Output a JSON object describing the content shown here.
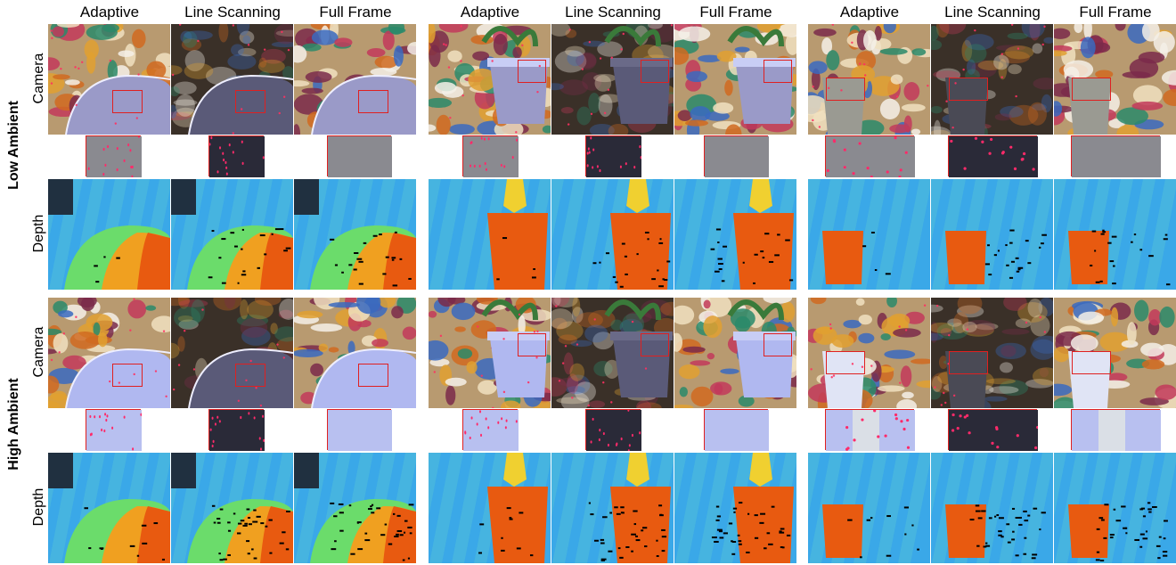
{
  "columns": [
    "Adaptive",
    "Line Scanning",
    "Full Frame"
  ],
  "row_labels": {
    "camera": "Camera",
    "depth": "Depth"
  },
  "groups": [
    "Low Ambient",
    "High Ambient"
  ],
  "scenes": [
    "cylinder",
    "plant-pot",
    "small-pot"
  ],
  "colors": {
    "depth_far": "#3aa8e8",
    "depth_mid": "#6bdc6b",
    "depth_near": "#e85a10",
    "roi_border": "#e02020"
  }
}
